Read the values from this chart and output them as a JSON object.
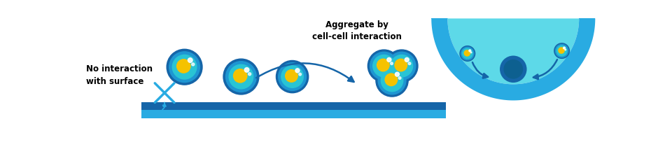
{
  "bg_color": "#ffffff",
  "text_no_interaction": "No interaction\nwith surface",
  "text_aggregate": "Aggregate by\ncell-cell interaction",
  "cell_outer_color": "#1565a8",
  "cell_mid_color": "#1e96d2",
  "cell_inner_color": "#29c4d4",
  "cell_nucleus_color": "#f5c200",
  "cell_highlight_color": "#ffffff",
  "arrow_color": "#1565a8",
  "plate_top_color": "#1565a8",
  "plate_bot_color": "#29abe2",
  "bowl_outer_color": "#29abe2",
  "bowl_inner_color": "#5dd9e8",
  "spheroid_outer": "#1565a8",
  "spheroid_inner": "#0d6090",
  "cross_color": "#29abe2",
  "font_size_label": 8.5,
  "font_size_title": 8.5
}
